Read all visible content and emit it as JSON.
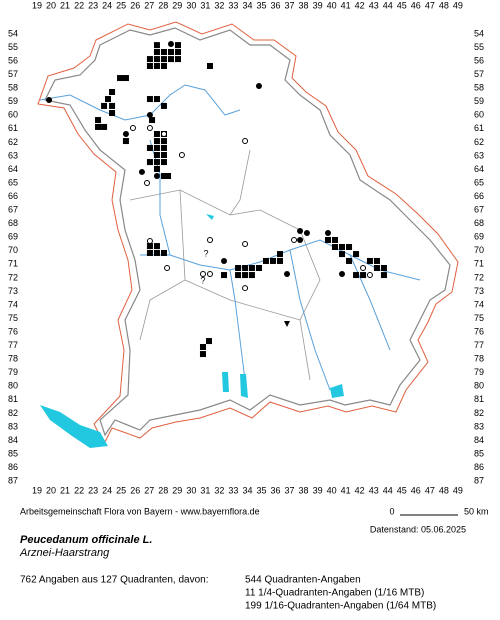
{
  "columns": [
    19,
    20,
    21,
    22,
    23,
    24,
    25,
    26,
    27,
    28,
    29,
    30,
    31,
    32,
    33,
    34,
    35,
    36,
    37,
    38,
    39,
    40,
    41,
    42,
    43,
    44,
    45,
    46,
    47,
    48,
    49
  ],
  "rows": [
    54,
    55,
    56,
    57,
    58,
    59,
    60,
    61,
    62,
    63,
    64,
    65,
    66,
    67,
    68,
    69,
    70,
    71,
    72,
    73,
    74,
    75,
    76,
    77,
    78,
    79,
    80,
    81,
    82,
    83,
    84,
    85,
    86,
    87
  ],
  "markers": {
    "squares": [
      [
        27.55,
        54.82
      ],
      [
        29.05,
        54.82
      ],
      [
        27.55,
        55.33
      ],
      [
        28.05,
        55.33
      ],
      [
        28.55,
        55.33
      ],
      [
        29.05,
        55.33
      ],
      [
        27.05,
        55.85
      ],
      [
        27.55,
        55.85
      ],
      [
        28.05,
        55.85
      ],
      [
        28.55,
        55.85
      ],
      [
        29.05,
        55.85
      ],
      [
        27.05,
        56.36
      ],
      [
        27.55,
        56.36
      ],
      [
        28.05,
        56.36
      ],
      [
        31.33,
        56.36
      ],
      [
        24.92,
        57.25
      ],
      [
        25.34,
        57.25
      ],
      [
        24.35,
        58.28
      ],
      [
        24.06,
        58.8
      ],
      [
        27.05,
        58.8
      ],
      [
        27.55,
        58.8
      ],
      [
        23.78,
        59.31
      ],
      [
        24.35,
        59.31
      ],
      [
        28.05,
        59.31
      ],
      [
        24.35,
        59.83
      ],
      [
        23.35,
        60.35
      ],
      [
        27.2,
        60.35
      ],
      [
        23.35,
        60.86
      ],
      [
        23.78,
        60.86
      ],
      [
        27.55,
        61.38
      ],
      [
        28.05,
        61.38
      ],
      [
        25.34,
        61.9
      ],
      [
        27.55,
        61.9
      ],
      [
        28.05,
        61.9
      ],
      [
        27.05,
        62.41
      ],
      [
        27.55,
        62.41
      ],
      [
        28.05,
        62.41
      ],
      [
        27.55,
        62.93
      ],
      [
        28.05,
        62.93
      ],
      [
        27.05,
        63.45
      ],
      [
        27.55,
        63.45
      ],
      [
        28.05,
        63.45
      ],
      [
        27.55,
        63.96
      ],
      [
        28.05,
        64.48
      ],
      [
        28.34,
        64.48
      ],
      [
        27.05,
        69.65
      ],
      [
        27.55,
        69.65
      ],
      [
        27.05,
        70.16
      ],
      [
        27.55,
        70.16
      ],
      [
        28.05,
        70.16
      ],
      [
        33.33,
        71.27
      ],
      [
        33.83,
        71.27
      ],
      [
        34.32,
        71.27
      ],
      [
        34.82,
        71.27
      ],
      [
        32.33,
        71.79
      ],
      [
        33.33,
        71.79
      ],
      [
        33.83,
        71.79
      ],
      [
        34.32,
        71.79
      ],
      [
        35.32,
        70.75
      ],
      [
        35.82,
        70.75
      ],
      [
        36.32,
        70.75
      ],
      [
        36.32,
        70.24
      ],
      [
        39.74,
        69.2
      ],
      [
        40.24,
        69.2
      ],
      [
        40.24,
        69.72
      ],
      [
        40.74,
        69.72
      ],
      [
        41.24,
        69.72
      ],
      [
        40.74,
        70.24
      ],
      [
        41.74,
        70.24
      ],
      [
        41.24,
        70.75
      ],
      [
        42.73,
        70.75
      ],
      [
        43.23,
        70.75
      ],
      [
        43.23,
        71.27
      ],
      [
        43.73,
        71.27
      ],
      [
        41.74,
        71.79
      ],
      [
        42.24,
        71.79
      ],
      [
        43.73,
        71.79
      ],
      [
        31.26,
        76.66
      ],
      [
        30.83,
        77.1
      ],
      [
        30.83,
        77.62
      ]
    ],
    "dots": [
      [
        28.55,
        54.74
      ],
      [
        19.86,
        58.87
      ],
      [
        34.82,
        57.84
      ],
      [
        27.05,
        59.98
      ],
      [
        25.34,
        61.38
      ],
      [
        26.48,
        64.18
      ],
      [
        37.75,
        68.54
      ],
      [
        38.24,
        68.69
      ],
      [
        39.74,
        68.69
      ],
      [
        37.75,
        69.2
      ],
      [
        32.33,
        70.75
      ],
      [
        36.82,
        71.71
      ],
      [
        40.74,
        71.71
      ],
      [
        27.55,
        64.48
      ]
    ],
    "circles": [
      [
        27.05,
        60.94
      ],
      [
        25.84,
        60.94
      ],
      [
        28.05,
        61.38
      ],
      [
        29.33,
        62.93
      ],
      [
        26.84,
        65.0
      ],
      [
        33.83,
        61.9
      ],
      [
        27.05,
        69.28
      ],
      [
        31.33,
        69.2
      ],
      [
        33.83,
        69.5
      ],
      [
        30.83,
        71.71
      ],
      [
        37.32,
        69.2
      ],
      [
        28.27,
        71.27
      ],
      [
        33.83,
        72.75
      ],
      [
        42.24,
        71.27
      ],
      [
        42.73,
        71.79
      ],
      [
        31.33,
        71.71
      ]
    ],
    "triangles": [
      [
        36.82,
        75.4
      ]
    ],
    "uncertain": [
      [
        31.05,
        70.24
      ],
      [
        30.83,
        72.23
      ]
    ],
    "uncertain_label": "?"
  },
  "scale": {
    "start": "0",
    "end": "50 km"
  },
  "footer": {
    "credit": "Arbeitsgemeinschaft Flora von Bayern - www.bayernflora.de",
    "date": "Datenstand: 05.06.2025"
  },
  "species": {
    "name": "Peucedanum officinale L.",
    "common": "Arznei-Haarstrang"
  },
  "stats": {
    "total": "762 Angaben aus 127 Quadranten, davon:",
    "lines": [
      "544 Quadranten-Angaben",
      "11 1/4-Quadranten-Angaben (1/16 MTB)",
      "199 1/16-Quadranten-Angaben (1/64 MTB)"
    ]
  }
}
